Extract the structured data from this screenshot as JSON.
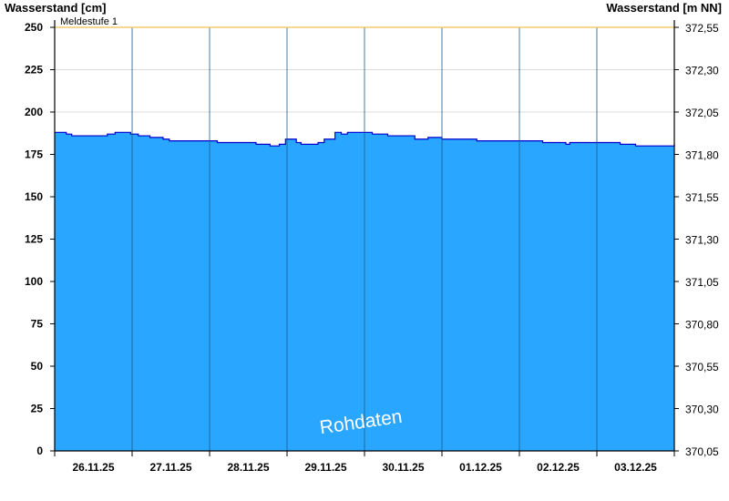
{
  "chart_data": {
    "type": "area",
    "ylabel_left": "Wasserstand [cm]",
    "ylabel_right": "Wasserstand [m NN]",
    "ylim_left": [
      0,
      250
    ],
    "ylim_right": [
      370.05,
      372.55
    ],
    "yticks_left": [
      "0",
      "25",
      "50",
      "75",
      "100",
      "125",
      "150",
      "175",
      "200",
      "225",
      "250"
    ],
    "yticks_right": [
      "370,05",
      "370,30",
      "370,55",
      "370,80",
      "371,05",
      "371,30",
      "371,55",
      "371,80",
      "372,05",
      "372,30",
      "372,55"
    ],
    "days": [
      "26.11.25",
      "27.11.25",
      "28.11.25",
      "29.11.25",
      "30.11.25",
      "01.12.25",
      "02.12.25",
      "03.12.25"
    ],
    "x_range_days": [
      0,
      8
    ],
    "grid": "horizontal",
    "threshold": {
      "label": "Meldestufe 1",
      "value": 250,
      "color": "#f0c050"
    },
    "watermark": "Rohdaten",
    "fill_color": "#29a6ff",
    "line_color": "#0000cc",
    "series": [
      {
        "x": [
          0,
          0.15,
          0.22,
          0.6,
          0.68,
          0.78,
          0.98,
          1.08,
          1.12,
          1.23,
          1.3,
          1.4,
          1.48,
          1.56,
          1.98,
          2.1,
          2.3,
          2.6,
          2.7,
          2.78,
          2.85,
          2.9,
          2.98,
          3.12,
          3.18,
          3.28,
          3.4,
          3.48,
          3.62,
          3.7,
          3.78,
          4.0,
          4.1,
          4.16,
          4.3,
          4.4,
          4.65,
          4.72,
          4.82,
          4.95,
          5.0,
          5.3,
          5.45,
          5.6,
          5.98,
          6.3,
          6.4,
          6.6,
          6.65,
          6.98,
          7.2,
          7.3,
          7.5,
          8.0
        ],
        "y": [
          188,
          187,
          186,
          186,
          187,
          188,
          187,
          186,
          186,
          185,
          185,
          184,
          183,
          183,
          183,
          182,
          182,
          181,
          181,
          180,
          180,
          181,
          184,
          182,
          181,
          181,
          182,
          184,
          188,
          187,
          188,
          188,
          187,
          187,
          186,
          186,
          184,
          184,
          185,
          185,
          184,
          184,
          183,
          183,
          183,
          182,
          182,
          181,
          182,
          182,
          182,
          181,
          180,
          181
        ]
      }
    ]
  }
}
